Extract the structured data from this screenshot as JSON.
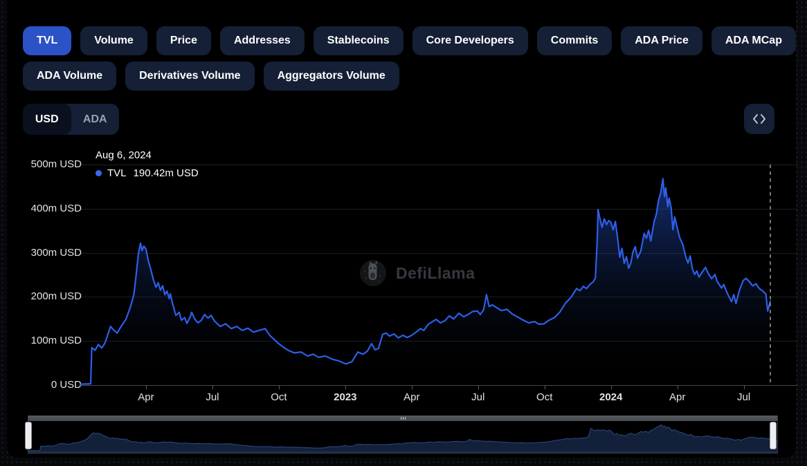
{
  "header": {
    "tabs_row1": [
      {
        "label": "TVL",
        "active": true
      },
      {
        "label": "Volume",
        "active": false
      },
      {
        "label": "Price",
        "active": false
      },
      {
        "label": "Addresses",
        "active": false
      },
      {
        "label": "Stablecoins",
        "active": false
      },
      {
        "label": "Core Developers",
        "active": false
      },
      {
        "label": "Commits",
        "active": false
      },
      {
        "label": "ADA Price",
        "active": false
      },
      {
        "label": "ADA MCap",
        "active": false
      }
    ],
    "tabs_row2": [
      {
        "label": "ADA Volume",
        "active": false
      },
      {
        "label": "Derivatives Volume",
        "active": false
      },
      {
        "label": "Aggregators Volume",
        "active": false
      }
    ],
    "denomination": {
      "options": [
        {
          "label": "USD",
          "selected": true
        },
        {
          "label": "ADA",
          "selected": false
        }
      ]
    }
  },
  "tooltip": {
    "date": "Aug 6, 2024",
    "series_label": "TVL",
    "value": "190.42m USD",
    "dot_color": "#3668f0"
  },
  "watermark": {
    "brand": "DefiLlama"
  },
  "colors": {
    "accent_blue": "#2c52c7",
    "line_blue": "#2e5fe8",
    "pill_bg": "#152036",
    "background": "#000000"
  },
  "chart_data": {
    "type": "area",
    "title": "TVL",
    "series_name": "TVL",
    "unit": "USD",
    "ylim": [
      0,
      500
    ],
    "y_ticks": [
      {
        "label": "0 USD",
        "value": 0
      },
      {
        "label": "100m USD",
        "value": 100
      },
      {
        "label": "200m USD",
        "value": 200
      },
      {
        "label": "300m USD",
        "value": 300
      },
      {
        "label": "400m USD",
        "value": 400
      },
      {
        "label": "500m USD",
        "value": 500
      }
    ],
    "x_domain_months": [
      0,
      31.2
    ],
    "x_start": "Jan 2022",
    "x_end": "Aug 6, 2024",
    "x_ticks": [
      {
        "label": "Apr",
        "month": 3,
        "bold": false
      },
      {
        "label": "Jul",
        "month": 6,
        "bold": false
      },
      {
        "label": "Oct",
        "month": 9,
        "bold": false
      },
      {
        "label": "2023",
        "month": 12,
        "bold": true
      },
      {
        "label": "Apr",
        "month": 15,
        "bold": false
      },
      {
        "label": "Jul",
        "month": 18,
        "bold": false
      },
      {
        "label": "Oct",
        "month": 21,
        "bold": false
      },
      {
        "label": "2024",
        "month": 24,
        "bold": true
      },
      {
        "label": "Apr",
        "month": 27,
        "bold": false
      },
      {
        "label": "Jul",
        "month": 30,
        "bold": false
      }
    ],
    "crosshair_month": 31.2,
    "last_point_value_musd": 190.42,
    "points_months_value_musd": [
      [
        0,
        2
      ],
      [
        0.5,
        3
      ],
      [
        0.55,
        85
      ],
      [
        0.7,
        79
      ],
      [
        0.85,
        92
      ],
      [
        1.0,
        84
      ],
      [
        1.15,
        96
      ],
      [
        1.4,
        133
      ],
      [
        1.55,
        124
      ],
      [
        1.7,
        118
      ],
      [
        1.85,
        131
      ],
      [
        2.1,
        150
      ],
      [
        2.3,
        178
      ],
      [
        2.45,
        205
      ],
      [
        2.55,
        248
      ],
      [
        2.65,
        296
      ],
      [
        2.75,
        322
      ],
      [
        2.82,
        305
      ],
      [
        2.9,
        315
      ],
      [
        3.0,
        308
      ],
      [
        3.1,
        282
      ],
      [
        3.2,
        265
      ],
      [
        3.34,
        238
      ],
      [
        3.45,
        222
      ],
      [
        3.55,
        232
      ],
      [
        3.65,
        215
      ],
      [
        3.75,
        225
      ],
      [
        3.85,
        205
      ],
      [
        3.95,
        213
      ],
      [
        4.05,
        196
      ],
      [
        4.1,
        207
      ],
      [
        4.2,
        185
      ],
      [
        4.35,
        158
      ],
      [
        4.5,
        165
      ],
      [
        4.6,
        147
      ],
      [
        4.75,
        153
      ],
      [
        4.85,
        140
      ],
      [
        5.0,
        155
      ],
      [
        5.06,
        165
      ],
      [
        5.2,
        150
      ],
      [
        5.35,
        141
      ],
      [
        5.5,
        147
      ],
      [
        5.65,
        160
      ],
      [
        5.8,
        152
      ],
      [
        5.94,
        158
      ],
      [
        6.1,
        145
      ],
      [
        6.35,
        133
      ],
      [
        6.6,
        139
      ],
      [
        6.85,
        128
      ],
      [
        7.1,
        133
      ],
      [
        7.35,
        124
      ],
      [
        7.6,
        129
      ],
      [
        7.85,
        120
      ],
      [
        8.1,
        124
      ],
      [
        8.38,
        128
      ],
      [
        8.6,
        112
      ],
      [
        8.8,
        103
      ],
      [
        8.97,
        95
      ],
      [
        9.2,
        86
      ],
      [
        9.45,
        78
      ],
      [
        9.7,
        73
      ],
      [
        10.0,
        75
      ],
      [
        10.3,
        66
      ],
      [
        10.55,
        70
      ],
      [
        10.8,
        63
      ],
      [
        11.1,
        66
      ],
      [
        11.4,
        59
      ],
      [
        11.7,
        55
      ],
      [
        12.03,
        48
      ],
      [
        12.3,
        53
      ],
      [
        12.57,
        75
      ],
      [
        12.8,
        70
      ],
      [
        13.0,
        77
      ],
      [
        13.19,
        94
      ],
      [
        13.35,
        80
      ],
      [
        13.5,
        83
      ],
      [
        13.69,
        115
      ],
      [
        13.85,
        118
      ],
      [
        14.0,
        111
      ],
      [
        14.2,
        116
      ],
      [
        14.4,
        107
      ],
      [
        14.6,
        113
      ],
      [
        14.8,
        108
      ],
      [
        14.97,
        112
      ],
      [
        15.2,
        120
      ],
      [
        15.4,
        128
      ],
      [
        15.55,
        124
      ],
      [
        15.75,
        138
      ],
      [
        16.1,
        149
      ],
      [
        16.3,
        141
      ],
      [
        16.5,
        146
      ],
      [
        16.7,
        157
      ],
      [
        16.9,
        150
      ],
      [
        17.13,
        163
      ],
      [
        17.35,
        155
      ],
      [
        17.55,
        160
      ],
      [
        17.75,
        167
      ],
      [
        17.97,
        168
      ],
      [
        18.1,
        160
      ],
      [
        18.25,
        171
      ],
      [
        18.38,
        205
      ],
      [
        18.5,
        178
      ],
      [
        18.65,
        182
      ],
      [
        18.85,
        175
      ],
      [
        19.05,
        169
      ],
      [
        19.3,
        172
      ],
      [
        19.55,
        161
      ],
      [
        19.8,
        154
      ],
      [
        20.05,
        147
      ],
      [
        20.3,
        141
      ],
      [
        20.55,
        144
      ],
      [
        20.75,
        138
      ],
      [
        20.97,
        139
      ],
      [
        21.2,
        147
      ],
      [
        21.45,
        153
      ],
      [
        21.7,
        166
      ],
      [
        21.95,
        186
      ],
      [
        22.2,
        199
      ],
      [
        22.45,
        219
      ],
      [
        22.6,
        214
      ],
      [
        22.75,
        224
      ],
      [
        22.9,
        219
      ],
      [
        23.05,
        228
      ],
      [
        23.2,
        234
      ],
      [
        23.3,
        243
      ],
      [
        23.38,
        330
      ],
      [
        23.42,
        398
      ],
      [
        23.5,
        378
      ],
      [
        23.6,
        358
      ],
      [
        23.7,
        377
      ],
      [
        23.8,
        364
      ],
      [
        23.9,
        373
      ],
      [
        24.0,
        369
      ],
      [
        24.1,
        352
      ],
      [
        24.2,
        371
      ],
      [
        24.3,
        334
      ],
      [
        24.4,
        290
      ],
      [
        24.5,
        310
      ],
      [
        24.6,
        276
      ],
      [
        24.7,
        291
      ],
      [
        24.8,
        265
      ],
      [
        24.9,
        277
      ],
      [
        25.0,
        303
      ],
      [
        25.1,
        314
      ],
      [
        25.2,
        288
      ],
      [
        25.35,
        304
      ],
      [
        25.5,
        344
      ],
      [
        25.6,
        333
      ],
      [
        25.7,
        351
      ],
      [
        25.8,
        327
      ],
      [
        25.95,
        371
      ],
      [
        26.05,
        387
      ],
      [
        26.15,
        419
      ],
      [
        26.25,
        437
      ],
      [
        26.35,
        468
      ],
      [
        26.42,
        427
      ],
      [
        26.48,
        447
      ],
      [
        26.57,
        404
      ],
      [
        26.63,
        424
      ],
      [
        26.72,
        402
      ],
      [
        26.8,
        352
      ],
      [
        26.88,
        381
      ],
      [
        26.98,
        360
      ],
      [
        27.1,
        335
      ],
      [
        27.25,
        318
      ],
      [
        27.38,
        291
      ],
      [
        27.48,
        277
      ],
      [
        27.58,
        293
      ],
      [
        27.68,
        264
      ],
      [
        27.78,
        251
      ],
      [
        27.88,
        259
      ],
      [
        27.98,
        245
      ],
      [
        28.12,
        256
      ],
      [
        28.27,
        267
      ],
      [
        28.4,
        253
      ],
      [
        28.55,
        241
      ],
      [
        28.7,
        251
      ],
      [
        28.8,
        235
      ],
      [
        29.0,
        220
      ],
      [
        29.1,
        228
      ],
      [
        29.25,
        209
      ],
      [
        29.45,
        189
      ],
      [
        29.55,
        205
      ],
      [
        29.65,
        185
      ],
      [
        29.8,
        214
      ],
      [
        29.97,
        237
      ],
      [
        30.1,
        242
      ],
      [
        30.25,
        235
      ],
      [
        30.4,
        225
      ],
      [
        30.55,
        230
      ],
      [
        30.7,
        219
      ],
      [
        30.85,
        214
      ],
      [
        31.0,
        206
      ],
      [
        31.08,
        168
      ],
      [
        31.2,
        190.42
      ]
    ]
  },
  "navigator": {
    "note": "range selector showing full series, both handles at extremes",
    "range_full": true
  }
}
